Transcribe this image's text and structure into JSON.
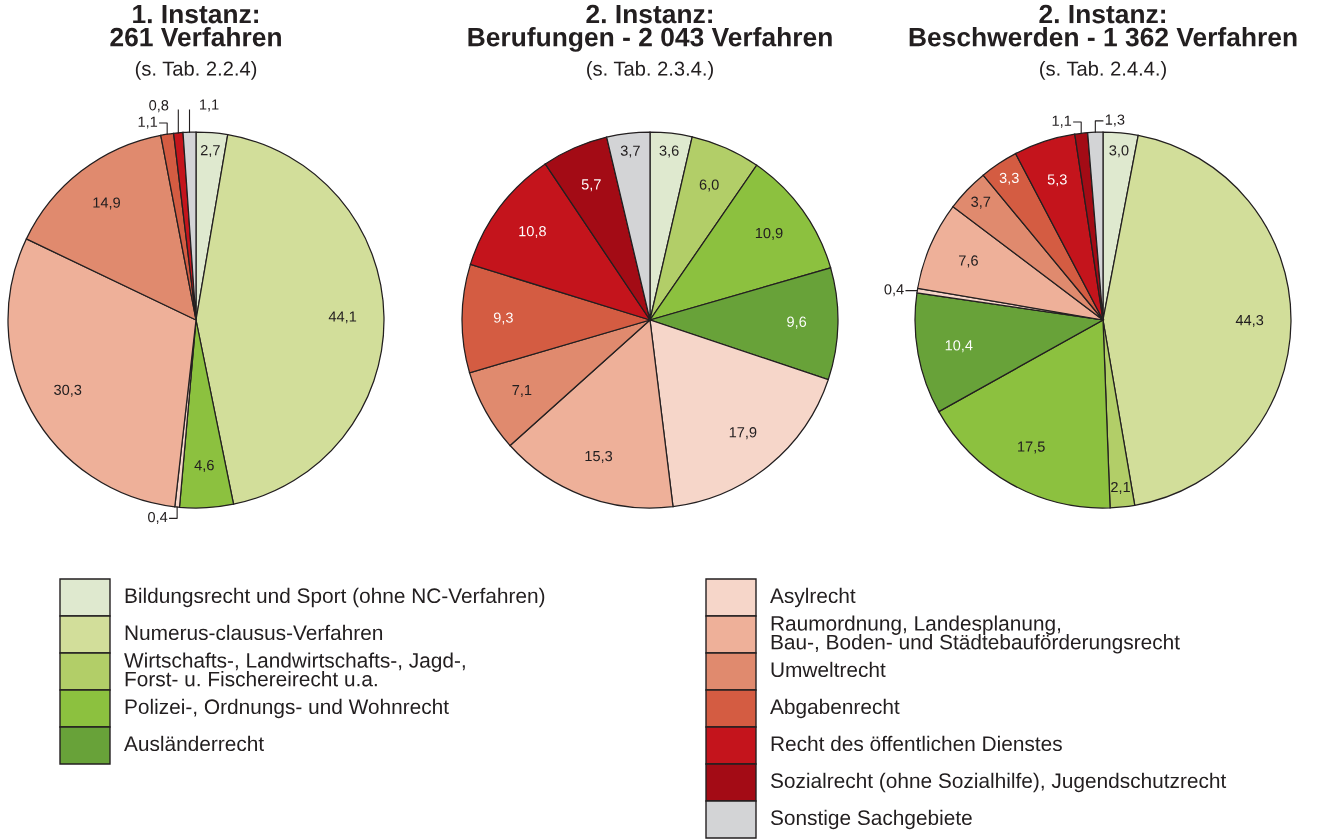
{
  "chart_data": [
    {
      "type": "pie",
      "title": "1. Instanz:\n261 Verfahren",
      "subtitle": "(s. Tab. 2.2.4)",
      "categories": [
        "Bildungsrecht und Sport (ohne NC-Verfahren)",
        "Numerus-clausus-Verfahren",
        "Wirtschafts-, Landwirtschafts-, Jagd-,\nForst- u. Fischereirecht u.a.",
        "Polizei-, Ordnungs- und Wohnrecht",
        "Ausländerrecht",
        "Asylrecht",
        "Raumordnung, Landesplanung,\nBau-, Boden- und Städtebauförderungsrecht",
        "Umweltrecht",
        "Abgabenrecht",
        "Recht des öffentlichen Dienstes",
        "Sozialrecht (ohne Sozialhilfe), Jugendschutzrecht",
        "Sonstige Sachgebiete"
      ],
      "values": [
        2.7,
        44.1,
        null,
        4.6,
        null,
        0.4,
        30.3,
        14.9,
        1.1,
        0.8,
        null,
        1.1
      ],
      "colors": [
        "#dfe9cf",
        "#d2de9a",
        "#b2ce68",
        "#8cc13f",
        "#68a239",
        "#f6d6c9",
        "#eeb099",
        "#e08a6e",
        "#d45c42",
        "#c4141c",
        "#a30b15",
        "#d3d4d6"
      ],
      "value_labels": [
        "2,7",
        "44,1",
        null,
        "4,6",
        null,
        "0,4",
        "30,3",
        "14,9",
        "1,1",
        "0,8",
        null,
        "1,1"
      ],
      "legend": "bottom"
    },
    {
      "type": "pie",
      "title": "2. Instanz:\nBerufungen - 2 043 Verfahren",
      "subtitle": "(s. Tab. 2.3.4.)",
      "categories": [
        null,
        null,
        null,
        null,
        null,
        null,
        null,
        null,
        null,
        null,
        null,
        null
      ],
      "values": [
        3.6,
        null,
        6.0,
        10.9,
        9.6,
        17.9,
        15.3,
        7.1,
        9.3,
        10.8,
        5.7,
        3.7
      ],
      "colors": [
        "#dfe9cf",
        "#d2de9a",
        "#b2ce68",
        "#8cc13f",
        "#68a239",
        "#f6d6c9",
        "#eeb099",
        "#e08a6e",
        "#d45c42",
        "#c4141c",
        "#a30b15",
        "#d3d4d6"
      ],
      "value_labels": [
        "3,6",
        null,
        "6,0",
        "10,9",
        "9,6",
        "17,9",
        "15,3",
        "7,1",
        "9,3",
        "10,8",
        "5,7",
        "3,7"
      ]
    },
    {
      "type": "pie",
      "title": "2. Instanz:\nBeschwerden - 1 362 Verfahren",
      "subtitle": "(s. Tab. 2.4.4.)",
      "categories": [
        null,
        null,
        null,
        null,
        null,
        null,
        null,
        null,
        null,
        null,
        null,
        null
      ],
      "values": [
        3.0,
        44.3,
        2.1,
        17.5,
        10.4,
        0.4,
        7.6,
        3.7,
        3.3,
        5.3,
        1.1,
        1.3
      ],
      "colors": [
        "#dfe9cf",
        "#d2de9a",
        "#b2ce68",
        "#8cc13f",
        "#68a239",
        "#f6d6c9",
        "#eeb099",
        "#e08a6e",
        "#d45c42",
        "#c4141c",
        "#a30b15",
        "#d3d4d6"
      ],
      "value_labels": [
        "3,0",
        "44,3",
        "2,1",
        "17,5",
        "10,4",
        "0,4",
        "7,6",
        "3,7",
        "3,3",
        "5,3",
        "1,1",
        "1,3"
      ]
    }
  ]
}
